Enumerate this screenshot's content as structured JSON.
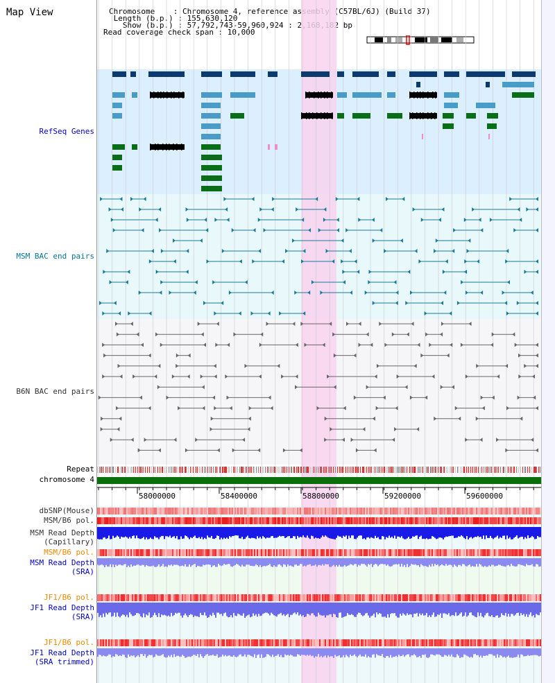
{
  "window": {
    "title": "Map View"
  },
  "info": {
    "chromosome": "Chromosome    : Chromosome 4, reference assembly (C57BL/6J) (Build 37)",
    "length": " Length (b.p.) : 155,630,120",
    "show": "   Show (b.p.) : 57,792,743-59,960,924 : 2,168,182 bp",
    "coverage": "Read coverage check span : 10,000"
  },
  "tracks": {
    "refseq": {
      "label": "RefSeq Genes",
      "color": "#0000cc"
    },
    "msm_bac": {
      "label": "MSM BAC end pairs",
      "color": "#007799"
    },
    "b6n_bac": {
      "label": "B6N BAC end pairs",
      "color": "#333333"
    },
    "repeat": {
      "label": "Repeat"
    },
    "chromosome": {
      "label": "chromosome 4"
    },
    "dbsnp": {
      "label": "dbSNP(Mouse)"
    },
    "msm_b6_pol": {
      "label": "MSM/B6 pol."
    },
    "msm_depth_cap_1": {
      "label": "MSM Read Depth"
    },
    "msm_depth_cap_2": {
      "label": "(Capillary)"
    },
    "msm_b6_pol_2": {
      "label": "MSM/B6 pol.",
      "color": "#ee8800"
    },
    "msm_depth_sra_1": {
      "label": "MSM Read Depth"
    },
    "msm_depth_sra_2": {
      "label": "(SRA)"
    },
    "jf1_b6_pol": {
      "label": "JF1/B6 pol.",
      "color": "#ee8800"
    },
    "jf1_depth_sra_1": {
      "label": "JF1 Read Depth"
    },
    "jf1_depth_sra_2": {
      "label": "(SRA)"
    },
    "jf1_b6_pol_2": {
      "label": "JF1/B6 pol.",
      "color": "#ee8800"
    },
    "jf1_depth_trim_1": {
      "label": "JF1 Read Depth"
    },
    "jf1_depth_trim_2": {
      "label": "(SRA trimmed)"
    }
  },
  "axis": {
    "ticks": [
      "58000000",
      "58400000",
      "58800000",
      "59200000",
      "59600000"
    ]
  }
}
